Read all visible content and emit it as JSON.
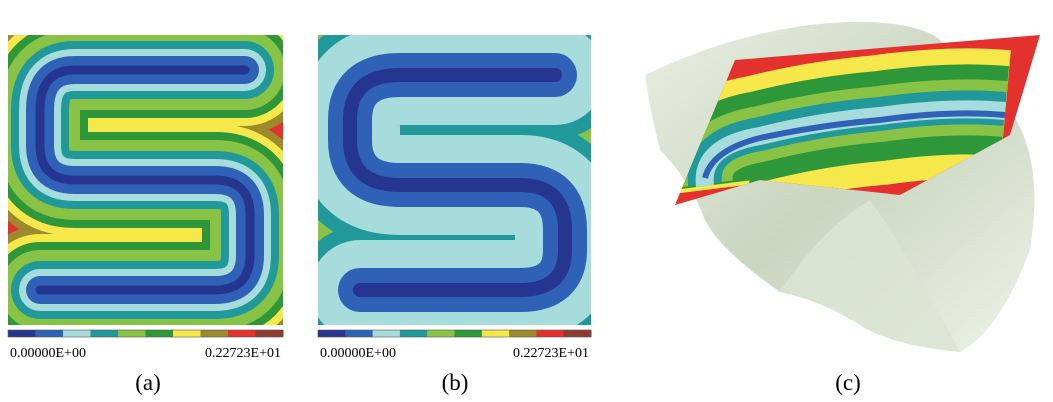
{
  "panels": [
    {
      "caption": "(a)",
      "colorbar": {
        "min_label": "0.00000E+00",
        "max_label": "0.22723E+01",
        "colors": [
          "#26358f",
          "#2f62b6",
          "#a6dcdc",
          "#21999a",
          "#88c346",
          "#2e973a",
          "#f6e84b",
          "#9c8a2c",
          "#e3312e",
          "#8c3b2c"
        ]
      }
    },
    {
      "caption": "(b)",
      "colorbar": {
        "min_label": "0.00000E+00",
        "max_label": "0.22723E+01",
        "colors": [
          "#26358f",
          "#2f62b6",
          "#a6dcdc",
          "#21999a",
          "#88c346",
          "#2e973a",
          "#f6e84b",
          "#9c8a2c",
          "#e3312e",
          "#8c3b2c"
        ]
      }
    },
    {
      "caption": "(c)"
    }
  ]
}
